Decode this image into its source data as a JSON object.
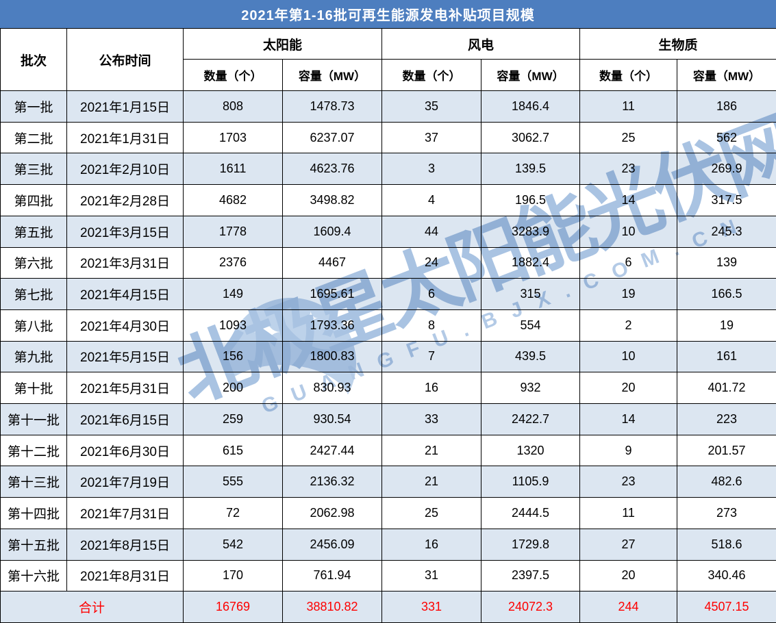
{
  "chart_data": {
    "type": "table",
    "title": "2021年第1-16批可再生能源发电补贴项目规模",
    "headers": {
      "batch": "批次",
      "date": "公布时间",
      "groups": [
        {
          "label": "太阳能",
          "sub": [
            "数量（个）",
            "容量（MW）"
          ]
        },
        {
          "label": "风电",
          "sub": [
            "数量（个）",
            "容量（MW）"
          ]
        },
        {
          "label": "生物质",
          "sub": [
            "数量（个）",
            "容量（MW）"
          ]
        }
      ]
    },
    "rows": [
      {
        "batch": "第一批",
        "date": "2021年1月15日",
        "values": [
          "808",
          "1478.73",
          "35",
          "1846.4",
          "11",
          "186"
        ]
      },
      {
        "batch": "第二批",
        "date": "2021年1月31日",
        "values": [
          "1703",
          "6237.07",
          "37",
          "3062.7",
          "25",
          "562"
        ]
      },
      {
        "batch": "第三批",
        "date": "2021年2月10日",
        "values": [
          "1611",
          "4623.76",
          "3",
          "139.5",
          "23",
          "269.9"
        ]
      },
      {
        "batch": "第四批",
        "date": "2021年2月28日",
        "values": [
          "4682",
          "3498.82",
          "4",
          "196.5",
          "14",
          "317.5"
        ]
      },
      {
        "batch": "第五批",
        "date": "2021年3月15日",
        "values": [
          "1778",
          "1609.4",
          "44",
          "3283.9",
          "10",
          "245.3"
        ]
      },
      {
        "batch": "第六批",
        "date": "2021年3月31日",
        "values": [
          "2376",
          "4467",
          "24",
          "1882.4",
          "6",
          "139"
        ]
      },
      {
        "batch": "第七批",
        "date": "2021年4月15日",
        "values": [
          "149",
          "1695.61",
          "6",
          "315",
          "19",
          "166.5"
        ]
      },
      {
        "batch": "第八批",
        "date": "2021年4月30日",
        "values": [
          "1093",
          "1793.36",
          "8",
          "554",
          "2",
          "19"
        ]
      },
      {
        "batch": "第九批",
        "date": "2021年5月15日",
        "values": [
          "156",
          "1800.83",
          "7",
          "439.5",
          "10",
          "161"
        ]
      },
      {
        "batch": "第十批",
        "date": "2021年5月31日",
        "values": [
          "200",
          "830.93",
          "16",
          "932",
          "20",
          "401.72"
        ]
      },
      {
        "batch": "第十一批",
        "date": "2021年6月15日",
        "values": [
          "259",
          "930.54",
          "33",
          "2422.7",
          "14",
          "223"
        ]
      },
      {
        "batch": "第十二批",
        "date": "2021年6月30日",
        "values": [
          "615",
          "2427.44",
          "21",
          "1320",
          "9",
          "201.57"
        ]
      },
      {
        "batch": "第十三批",
        "date": "2021年7月19日",
        "values": [
          "555",
          "2136.32",
          "21",
          "1105.9",
          "23",
          "482.6"
        ]
      },
      {
        "batch": "第十四批",
        "date": "2021年7月31日",
        "values": [
          "72",
          "2062.98",
          "25",
          "2444.5",
          "11",
          "273"
        ]
      },
      {
        "batch": "第十五批",
        "date": "2021年8月15日",
        "values": [
          "542",
          "2456.09",
          "16",
          "1729.8",
          "27",
          "518.6"
        ]
      },
      {
        "batch": "第十六批",
        "date": "2021年8月31日",
        "values": [
          "170",
          "761.94",
          "31",
          "2397.5",
          "20",
          "340.46"
        ]
      }
    ],
    "total": {
      "label": "合计",
      "values": [
        "16769",
        "38810.82",
        "331",
        "24072.3",
        "244",
        "4507.15"
      ]
    }
  },
  "watermark": {
    "main": "北极星太阳能光伏网",
    "sub": "GUANGFU.BJX.COM.CN"
  },
  "colors": {
    "title_bg": "#4d7ebf",
    "title_text": "#ffffff",
    "stripe_bg": "#dce6f1",
    "border": "#000000",
    "total_text": "#fe0000",
    "watermark": "#a9c3e2"
  }
}
